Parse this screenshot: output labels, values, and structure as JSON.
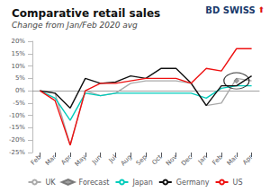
{
  "chart_data": {
    "type": "line",
    "title": "Comparative retail sales",
    "subtitle": "Change from Jan/Feb 2020 avg",
    "annotations": [
      "BD",
      "SWISS",
      "⬆"
    ],
    "categories": [
      "Feb",
      "Mar",
      "Apr",
      "May",
      "Jun",
      "Jul",
      "Aug",
      "Sep",
      "Oct",
      "Nov",
      "Dec",
      "Jan",
      "Feb",
      "Mar",
      "Apr"
    ],
    "series": [
      {
        "name": "UK",
        "color": "#aaaaaa",
        "values": [
          0,
          -1,
          -22,
          0,
          -2,
          -1,
          3,
          4,
          4,
          4,
          3,
          -6,
          -5,
          5,
          4
        ]
      },
      {
        "name": "Forecast",
        "type": "scatter",
        "marker": "diamond",
        "color": "#888888",
        "values": [
          null,
          null,
          null,
          null,
          null,
          null,
          null,
          null,
          null,
          null,
          null,
          null,
          null,
          4,
          null
        ]
      },
      {
        "name": "Japan",
        "color": "#00ccbb",
        "values": [
          0,
          -3,
          -12,
          -1,
          -2,
          -1,
          -1,
          -1,
          -1,
          -1,
          -1,
          -3,
          1,
          2,
          2
        ]
      },
      {
        "name": "Germany",
        "color": "#111111",
        "values": [
          0,
          -1,
          -7,
          5,
          3,
          3.5,
          6,
          5,
          9,
          9,
          3,
          -6,
          2,
          2,
          6
        ]
      },
      {
        "name": "US",
        "color": "#ee1111",
        "values": [
          0,
          -4,
          -22,
          0,
          3,
          3,
          4,
          5,
          5,
          5,
          3,
          9,
          8,
          17,
          17
        ]
      }
    ],
    "ylim": [
      -25,
      20
    ],
    "yticks": [
      {
        "value": -25,
        "label": "-25%"
      },
      {
        "value": -20,
        "label": "-20%"
      },
      {
        "value": -15,
        "label": "-15%"
      },
      {
        "value": -10,
        "label": "-10%"
      },
      {
        "value": -5,
        "label": "-5%"
      },
      {
        "value": 0,
        "label": "0%"
      },
      {
        "value": 5,
        "label": "5%"
      },
      {
        "value": 10,
        "label": "10%"
      },
      {
        "value": 15,
        "label": "15%"
      },
      {
        "value": 20,
        "label": "20%"
      }
    ],
    "grid": false,
    "legend": "bottom"
  }
}
